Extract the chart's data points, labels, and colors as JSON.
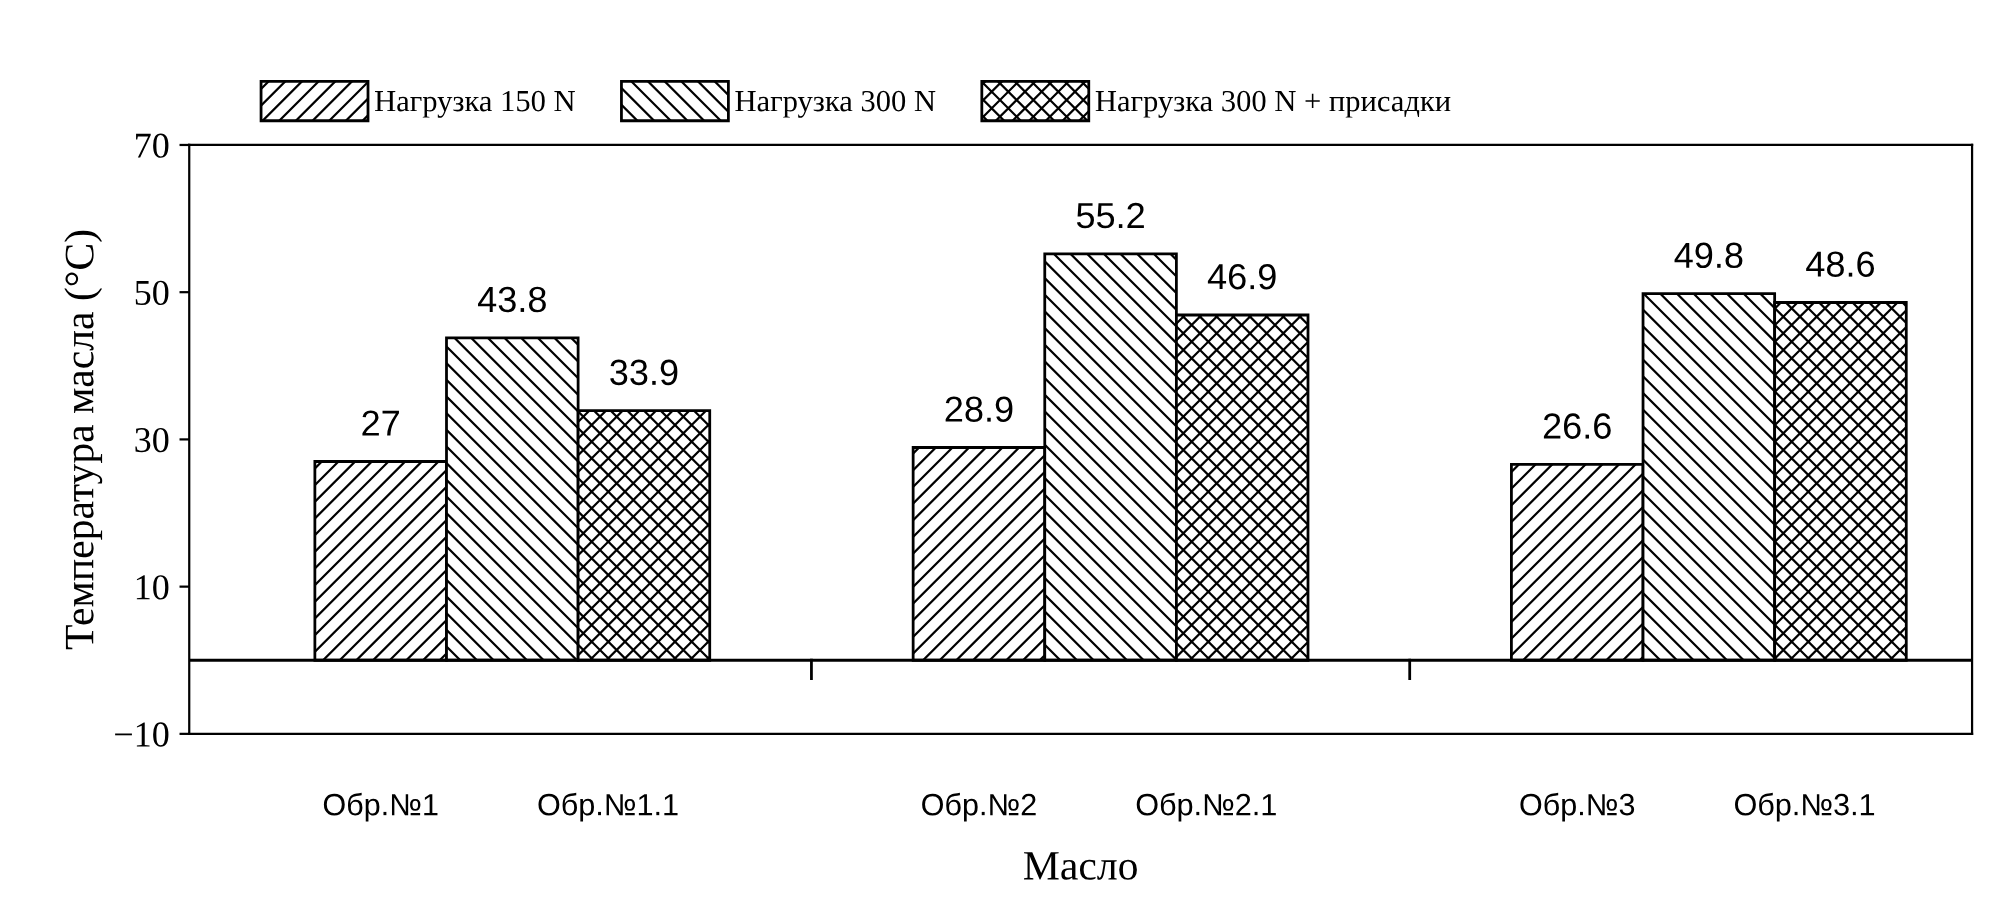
{
  "chart_data": {
    "type": "bar",
    "xlabel": "Масло",
    "ylabel": "Температура масла (°C)",
    "categories": [
      null,
      null,
      null
    ],
    "series": [
      {
        "name": "Нагрузка 150 N",
        "color": "#000000",
        "values": [
          27,
          28.9,
          26.6
        ]
      },
      {
        "name": "Нагрузка 300 N",
        "color": "#000000",
        "values": [
          43.8,
          55.2,
          49.8
        ]
      },
      {
        "name": "Нагрузка 300 N + присадки",
        "color": "#000000",
        "values": [
          33.9,
          46.9,
          48.6
        ]
      }
    ],
    "ylim": [
      -10,
      70
    ],
    "yticks": [
      {
        "value": -10,
        "label": "−10"
      },
      10,
      30,
      50,
      70
    ],
    "ref_lines": [
      {
        "axis": "y",
        "value": 0,
        "color": "#000000"
      }
    ],
    "annotations": [
      "Обр.№1",
      "Обр.№1.1",
      "Обр.№2",
      "Обр.№2.1",
      "Обр.№3",
      "Обр.№3.1"
    ],
    "data_labels": true,
    "legend": "top",
    "grid": false
  }
}
